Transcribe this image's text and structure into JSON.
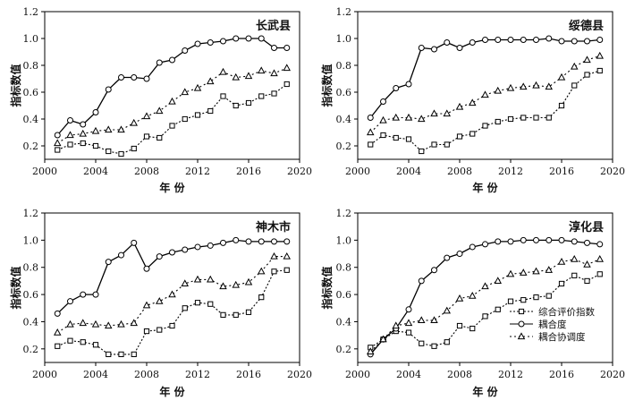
{
  "chart_data": [
    {
      "type": "line",
      "title": "长武县",
      "xlabel": "年 份",
      "ylabel": "指标数值",
      "x": [
        2001,
        2002,
        2003,
        2004,
        2005,
        2006,
        2007,
        2008,
        2009,
        2010,
        2011,
        2012,
        2013,
        2014,
        2015,
        2016,
        2017,
        2018,
        2019
      ],
      "xlim": [
        2000,
        2020
      ],
      "ylim": [
        0.1,
        1.2
      ],
      "xticks": [
        "2000",
        "2004",
        "2008",
        "2012",
        "2016",
        "2020"
      ],
      "yticks": [
        "0.2",
        "0.4",
        "0.6",
        "0.8",
        "1.0",
        "1.2"
      ],
      "series": [
        {
          "name": "综合评价指数",
          "marker": "square",
          "values": [
            0.17,
            0.21,
            0.22,
            0.2,
            0.16,
            0.14,
            0.18,
            0.27,
            0.26,
            0.35,
            0.4,
            0.43,
            0.46,
            0.57,
            0.5,
            0.52,
            0.57,
            0.59,
            0.66
          ]
        },
        {
          "name": "耦合度",
          "marker": "circle",
          "values": [
            0.28,
            0.39,
            0.36,
            0.45,
            0.62,
            0.71,
            0.71,
            0.7,
            0.82,
            0.84,
            0.91,
            0.96,
            0.97,
            0.98,
            1.0,
            1.0,
            1.0,
            0.93,
            0.93
          ]
        },
        {
          "name": "耦合协调度",
          "marker": "triangle",
          "values": [
            0.22,
            0.28,
            0.29,
            0.31,
            0.32,
            0.32,
            0.37,
            0.42,
            0.46,
            0.53,
            0.6,
            0.63,
            0.68,
            0.75,
            0.71,
            0.72,
            0.76,
            0.74,
            0.78
          ]
        }
      ]
    },
    {
      "type": "line",
      "title": "绥德县",
      "xlabel": "年 份",
      "ylabel": "指标数值",
      "x": [
        2001,
        2002,
        2003,
        2004,
        2005,
        2006,
        2007,
        2008,
        2009,
        2010,
        2011,
        2012,
        2013,
        2014,
        2015,
        2016,
        2017,
        2018,
        2019
      ],
      "xlim": [
        2000,
        2020
      ],
      "ylim": [
        0.1,
        1.2
      ],
      "xticks": [
        "2000",
        "2004",
        "2008",
        "2012",
        "2016",
        "2020"
      ],
      "yticks": [
        "0.2",
        "0.4",
        "0.6",
        "0.8",
        "1.0",
        "1.2"
      ],
      "series": [
        {
          "name": "综合评价指数",
          "marker": "square",
          "values": [
            0.21,
            0.28,
            0.26,
            0.25,
            0.16,
            0.21,
            0.21,
            0.27,
            0.29,
            0.35,
            0.38,
            0.4,
            0.41,
            0.41,
            0.41,
            0.5,
            0.65,
            0.73,
            0.76
          ]
        },
        {
          "name": "耦合度",
          "marker": "circle",
          "values": [
            0.41,
            0.53,
            0.63,
            0.66,
            0.93,
            0.92,
            0.97,
            0.93,
            0.97,
            0.99,
            0.99,
            0.99,
            0.99,
            0.99,
            1.0,
            0.98,
            0.98,
            0.98,
            0.99
          ]
        },
        {
          "name": "耦合协调度",
          "marker": "triangle",
          "values": [
            0.3,
            0.39,
            0.41,
            0.41,
            0.4,
            0.44,
            0.44,
            0.49,
            0.52,
            0.58,
            0.61,
            0.63,
            0.64,
            0.65,
            0.64,
            0.71,
            0.79,
            0.84,
            0.87
          ]
        }
      ]
    },
    {
      "type": "line",
      "title": "神木市",
      "xlabel": "年 份",
      "ylabel": "指标数值",
      "x": [
        2001,
        2002,
        2003,
        2004,
        2005,
        2006,
        2007,
        2008,
        2009,
        2010,
        2011,
        2012,
        2013,
        2014,
        2015,
        2016,
        2017,
        2018,
        2019
      ],
      "xlim": [
        2000,
        2020
      ],
      "ylim": [
        0.1,
        1.2
      ],
      "xticks": [
        "2000",
        "2004",
        "2008",
        "2012",
        "2016",
        "2020"
      ],
      "yticks": [
        "0.2",
        "0.4",
        "0.6",
        "0.8",
        "1.0",
        "1.2"
      ],
      "series": [
        {
          "name": "综合评价指数",
          "marker": "square",
          "values": [
            0.22,
            0.26,
            0.25,
            0.23,
            0.16,
            0.16,
            0.16,
            0.33,
            0.34,
            0.37,
            0.5,
            0.54,
            0.53,
            0.45,
            0.45,
            0.47,
            0.58,
            0.77,
            0.78
          ]
        },
        {
          "name": "耦合度",
          "marker": "circle",
          "values": [
            0.46,
            0.55,
            0.6,
            0.6,
            0.84,
            0.89,
            0.98,
            0.79,
            0.88,
            0.91,
            0.93,
            0.95,
            0.96,
            0.98,
            1.0,
            0.99,
            0.99,
            0.99,
            0.99
          ]
        },
        {
          "name": "耦合协调度",
          "marker": "triangle",
          "values": [
            0.32,
            0.38,
            0.39,
            0.38,
            0.37,
            0.38,
            0.39,
            0.52,
            0.55,
            0.6,
            0.68,
            0.71,
            0.71,
            0.66,
            0.67,
            0.69,
            0.77,
            0.88,
            0.88
          ]
        }
      ]
    },
    {
      "type": "line",
      "title": "淳化县",
      "xlabel": "年 份",
      "ylabel": "指标数值",
      "x": [
        2001,
        2002,
        2003,
        2004,
        2005,
        2006,
        2007,
        2008,
        2009,
        2010,
        2011,
        2012,
        2013,
        2014,
        2015,
        2016,
        2017,
        2018,
        2019
      ],
      "xlim": [
        2000,
        2020
      ],
      "ylim": [
        0.1,
        1.2
      ],
      "xticks": [
        "2000",
        "2004",
        "2008",
        "2012",
        "2016",
        "2020"
      ],
      "yticks": [
        "0.2",
        "0.4",
        "0.6",
        "0.8",
        "1.0",
        "1.2"
      ],
      "legend": [
        "综合评价指数",
        "耦合度",
        "耦合协调度"
      ],
      "legend_position": "lower-right",
      "series": [
        {
          "name": "综合评价指数",
          "marker": "square",
          "values": [
            0.21,
            0.27,
            0.33,
            0.32,
            0.24,
            0.22,
            0.25,
            0.37,
            0.35,
            0.44,
            0.49,
            0.55,
            0.56,
            0.58,
            0.59,
            0.68,
            0.74,
            0.7,
            0.75
          ]
        },
        {
          "name": "耦合度",
          "marker": "circle",
          "values": [
            0.16,
            0.27,
            0.35,
            0.49,
            0.7,
            0.78,
            0.87,
            0.9,
            0.95,
            0.97,
            0.99,
            0.99,
            1.0,
            1.0,
            1.0,
            1.0,
            0.99,
            0.98,
            0.97
          ]
        },
        {
          "name": "耦合协调度",
          "marker": "triangle",
          "values": [
            0.18,
            0.27,
            0.37,
            0.39,
            0.41,
            0.41,
            0.48,
            0.57,
            0.59,
            0.66,
            0.7,
            0.75,
            0.76,
            0.77,
            0.78,
            0.84,
            0.86,
            0.82,
            0.86
          ]
        }
      ]
    }
  ]
}
